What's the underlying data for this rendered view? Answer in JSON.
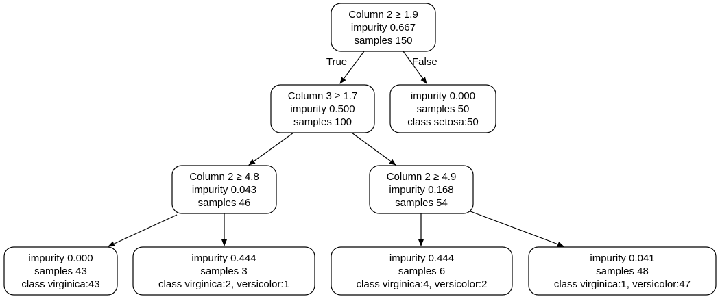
{
  "tree": {
    "nodes": [
      {
        "id": "n0",
        "lines": [
          "Column 2 ≥ 1.9",
          "impurity 0.667",
          "samples 150"
        ]
      },
      {
        "id": "n1",
        "lines": [
          "Column 3 ≥ 1.7",
          "impurity 0.500",
          "samples 100"
        ]
      },
      {
        "id": "n2",
        "lines": [
          "impurity 0.000",
          "samples 50",
          "class setosa:50"
        ]
      },
      {
        "id": "n3",
        "lines": [
          "Column 2 ≥ 4.8",
          "impurity 0.043",
          "samples 46"
        ]
      },
      {
        "id": "n4",
        "lines": [
          "Column 2 ≥ 4.9",
          "impurity 0.168",
          "samples 54"
        ]
      },
      {
        "id": "n5",
        "lines": [
          "impurity 0.000",
          "samples 43",
          "class virginica:43"
        ]
      },
      {
        "id": "n6",
        "lines": [
          "impurity 0.444",
          "samples 3",
          "class virginica:2, versicolor:1"
        ]
      },
      {
        "id": "n7",
        "lines": [
          "impurity 0.444",
          "samples 6",
          "class virginica:4, versicolor:2"
        ]
      },
      {
        "id": "n8",
        "lines": [
          "impurity 0.041",
          "samples 48",
          "class virginica:1, versicolor:47"
        ]
      }
    ],
    "edges": [
      {
        "from": "n0",
        "to": "n1",
        "label": "True"
      },
      {
        "from": "n0",
        "to": "n2",
        "label": "False"
      },
      {
        "from": "n1",
        "to": "n3",
        "label": ""
      },
      {
        "from": "n1",
        "to": "n4",
        "label": ""
      },
      {
        "from": "n3",
        "to": "n5",
        "label": ""
      },
      {
        "from": "n3",
        "to": "n6",
        "label": ""
      },
      {
        "from": "n4",
        "to": "n7",
        "label": ""
      },
      {
        "from": "n4",
        "to": "n8",
        "label": ""
      }
    ]
  }
}
